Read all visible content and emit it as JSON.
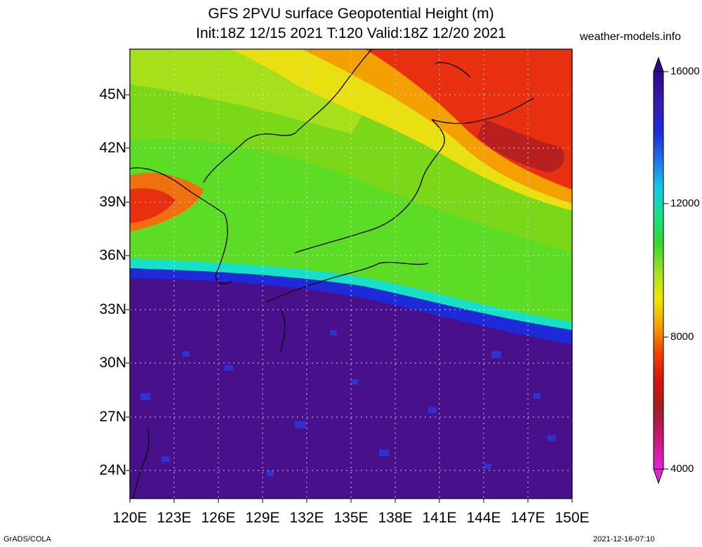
{
  "header": {
    "title_line1": "GFS 2PVU surface Geopotential Height (m)",
    "title_line2": "Init:18Z 12/15 2021 T:120 Valid:18Z 12/20 2021",
    "site": "weather-models.info"
  },
  "map": {
    "lat_labels": [
      "45N",
      "42N",
      "39N",
      "36N",
      "33N",
      "30N",
      "27N",
      "24N"
    ],
    "lon_labels": [
      "120E",
      "123E",
      "126E",
      "129E",
      "132E",
      "135E",
      "138E",
      "141E",
      "144E",
      "147E",
      "150E"
    ]
  },
  "colorbar": {
    "labels": [
      "16000",
      "12000",
      "8000",
      "4000"
    ]
  },
  "footer": {
    "left": "GrADS/COLA",
    "right": "2021-12-16-07:10"
  }
}
